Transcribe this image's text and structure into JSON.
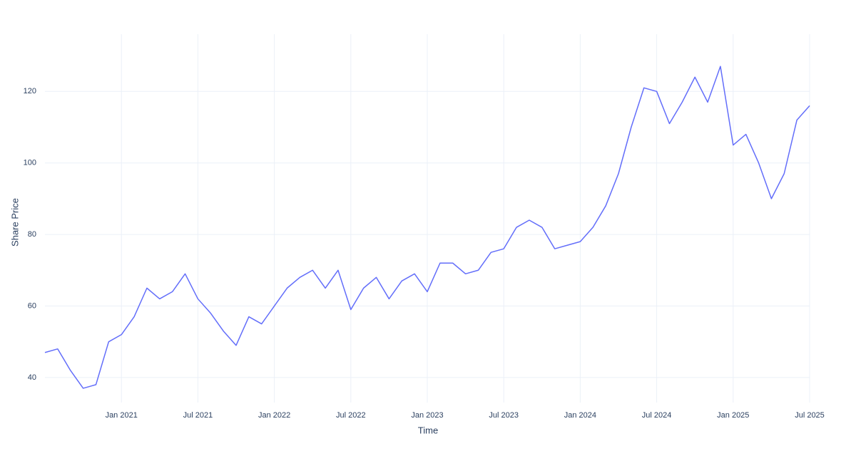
{
  "chart_data": {
    "type": "line",
    "x_label": "Time",
    "y_label": "Share Price",
    "x": [
      "2020-07",
      "2020-08",
      "2020-09",
      "2020-10",
      "2020-11",
      "2020-12",
      "2021-01",
      "2021-02",
      "2021-03",
      "2021-04",
      "2021-05",
      "2021-06",
      "2021-07",
      "2021-08",
      "2021-09",
      "2021-10",
      "2021-11",
      "2021-12",
      "2022-01",
      "2022-02",
      "2022-03",
      "2022-04",
      "2022-05",
      "2022-06",
      "2022-07",
      "2022-08",
      "2022-09",
      "2022-10",
      "2022-11",
      "2022-12",
      "2023-01",
      "2023-02",
      "2023-03",
      "2023-04",
      "2023-05",
      "2023-06",
      "2023-07",
      "2023-08",
      "2023-09",
      "2023-10",
      "2023-11",
      "2023-12",
      "2024-01",
      "2024-02",
      "2024-03",
      "2024-04",
      "2024-05",
      "2024-06",
      "2024-07",
      "2024-08",
      "2024-09",
      "2024-10",
      "2024-11",
      "2024-12",
      "2025-01",
      "2025-02",
      "2025-03",
      "2025-04",
      "2025-05",
      "2025-06",
      "2025-07"
    ],
    "series": [
      {
        "name": "Share Price",
        "color": "#636efa",
        "values": [
          47,
          48,
          42,
          37,
          38,
          50,
          52,
          57,
          65,
          62,
          64,
          69,
          62,
          58,
          53,
          49,
          57,
          55,
          60,
          65,
          68,
          70,
          65,
          70,
          59,
          65,
          68,
          62,
          67,
          69,
          64,
          72,
          72,
          69,
          70,
          75,
          76,
          82,
          84,
          82,
          76,
          77,
          78,
          82,
          88,
          97,
          110,
          121,
          120,
          111,
          117,
          124,
          117,
          127,
          105,
          108,
          100,
          90,
          97,
          112,
          116
        ]
      }
    ],
    "xlim": [
      "2020-07",
      "2025-07"
    ],
    "xticks": [
      {
        "value": "2021-01",
        "label": "Jan 2021"
      },
      {
        "value": "2021-07",
        "label": "Jul 2021"
      },
      {
        "value": "2022-01",
        "label": "Jan 2022"
      },
      {
        "value": "2022-07",
        "label": "Jul 2022"
      },
      {
        "value": "2023-01",
        "label": "Jan 2023"
      },
      {
        "value": "2023-07",
        "label": "Jul 2023"
      },
      {
        "value": "2024-01",
        "label": "Jan 2024"
      },
      {
        "value": "2024-07",
        "label": "Jul 2024"
      },
      {
        "value": "2025-01",
        "label": "Jan 2025"
      },
      {
        "value": "2025-07",
        "label": "Jul 2025"
      }
    ],
    "ylim": [
      33,
      136
    ],
    "yticks": [
      40,
      60,
      80,
      100,
      120
    ],
    "grid": true
  }
}
